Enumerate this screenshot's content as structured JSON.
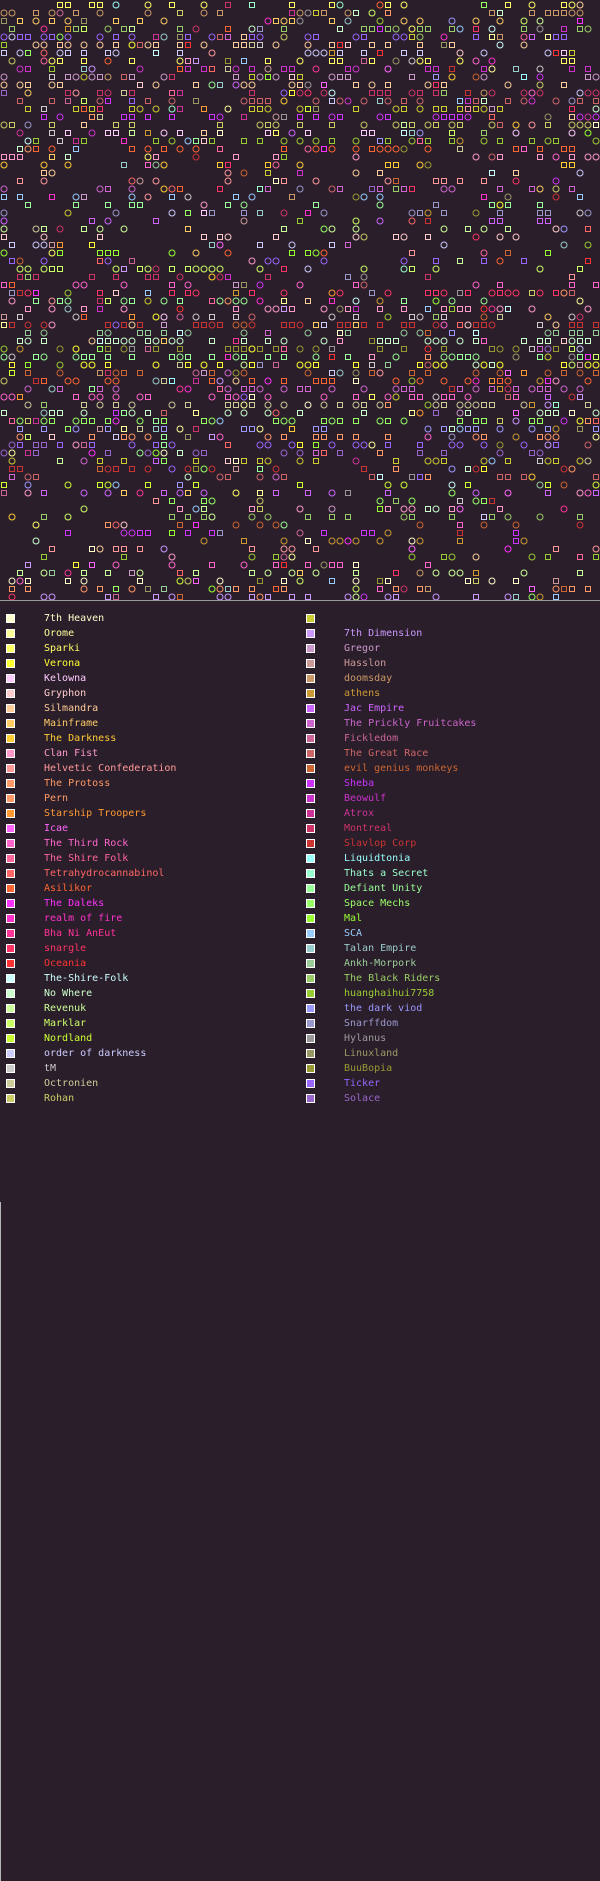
{
  "legend": {
    "left": [
      {
        "name": "7th Heaven",
        "color": "#ffffcc"
      },
      {
        "name": "Orome",
        "color": "#ffff99"
      },
      {
        "name": "Sparki",
        "color": "#ffff66"
      },
      {
        "name": "Verona",
        "color": "#ffff33"
      },
      {
        "name": "Kelowna",
        "color": "#ffccff"
      },
      {
        "name": "Gryphon",
        "color": "#ffcccc"
      },
      {
        "name": "Silmandra",
        "color": "#ffcc99"
      },
      {
        "name": "Mainframe",
        "color": "#ffcc66"
      },
      {
        "name": "The Darkness",
        "color": "#ffcc33"
      },
      {
        "name": "Clan Fist",
        "color": "#ff99cc"
      },
      {
        "name": "Helvetic Confederation",
        "color": "#ff9999"
      },
      {
        "name": "The Protoss",
        "color": "#ff9966"
      },
      {
        "name": "Pern",
        "color": "#ff9966"
      },
      {
        "name": "Starship Troopers",
        "color": "#ff9933"
      },
      {
        "name": "Icae",
        "color": "#ff66ff"
      },
      {
        "name": "The Third Rock",
        "color": "#ff66cc"
      },
      {
        "name": "The Shire Folk",
        "color": "#ff6699"
      },
      {
        "name": "Tetrahydrocannabinol",
        "color": "#ff6666"
      },
      {
        "name": "Asilikor",
        "color": "#ff6633"
      },
      {
        "name": "The Daleks",
        "color": "#ff33ff"
      },
      {
        "name": "realm of fire",
        "color": "#ff33cc"
      },
      {
        "name": "Bha Ni AnEut",
        "color": "#ff3399"
      },
      {
        "name": "snargle",
        "color": "#ff3366"
      },
      {
        "name": "Oceania",
        "color": "#ff3333"
      },
      {
        "name": "The-Shire-Folk",
        "color": "#ccffff"
      },
      {
        "name": "No Where",
        "color": "#ccffcc"
      },
      {
        "name": "Revenuk",
        "color": "#ccff99"
      },
      {
        "name": "Marklar",
        "color": "#ccff66"
      },
      {
        "name": "Nordland",
        "color": "#ccff33"
      },
      {
        "name": "order of darkness",
        "color": "#ccccff"
      },
      {
        "name": "tM",
        "color": "#cccccc"
      },
      {
        "name": "Octronien",
        "color": "#cccc99"
      },
      {
        "name": "Rohan",
        "color": "#cccc66"
      }
    ],
    "right": [
      {
        "name": "",
        "color": "#cccc33"
      },
      {
        "name": "7th Dimension",
        "color": "#cc99ff"
      },
      {
        "name": "Gregor",
        "color": "#cc99cc"
      },
      {
        "name": "Hasslon",
        "color": "#cc9999"
      },
      {
        "name": "doomsday",
        "color": "#cc9966"
      },
      {
        "name": "athens",
        "color": "#cc9933"
      },
      {
        "name": "Jac Empire",
        "color": "#cc66ff"
      },
      {
        "name": "The Prickly Fruitcakes",
        "color": "#cc66cc"
      },
      {
        "name": "Fickledom",
        "color": "#cc6699"
      },
      {
        "name": "The Great Race",
        "color": "#cc6666"
      },
      {
        "name": "evil genius monkeys",
        "color": "#cc6633"
      },
      {
        "name": "Sheba",
        "color": "#cc33ff"
      },
      {
        "name": "Beowulf",
        "color": "#cc33cc"
      },
      {
        "name": "Atrox",
        "color": "#cc3399"
      },
      {
        "name": "Montreal",
        "color": "#cc3366"
      },
      {
        "name": "Slavlop Corp",
        "color": "#cc3333"
      },
      {
        "name": "Liquidtonia",
        "color": "#99ffff"
      },
      {
        "name": "Thats a Secret",
        "color": "#99ffcc"
      },
      {
        "name": "Defiant Unity",
        "color": "#99ff99"
      },
      {
        "name": "Space Mechs",
        "color": "#99ff66"
      },
      {
        "name": "Mal",
        "color": "#99ff33"
      },
      {
        "name": "SCA",
        "color": "#99ccff"
      },
      {
        "name": "Talan Empire",
        "color": "#99cccc"
      },
      {
        "name": "Ankh-Morpork",
        "color": "#99cc99"
      },
      {
        "name": "The Black Riders",
        "color": "#99cc66"
      },
      {
        "name": "huanghaihui7758",
        "color": "#99cc33"
      },
      {
        "name": "the dark viod",
        "color": "#9999ff"
      },
      {
        "name": "Snarffdom",
        "color": "#9999cc"
      },
      {
        "name": "Hylanus",
        "color": "#999999"
      },
      {
        "name": "Linuxland",
        "color": "#999966"
      },
      {
        "name": "BuuBopia",
        "color": "#999933"
      },
      {
        "name": "Ticker",
        "color": "#9966ff"
      },
      {
        "name": "Solace",
        "color": "#9966cc"
      }
    ]
  },
  "map": {
    "background": "#2a1e2a",
    "marker_types": [
      "square",
      "circle"
    ]
  }
}
